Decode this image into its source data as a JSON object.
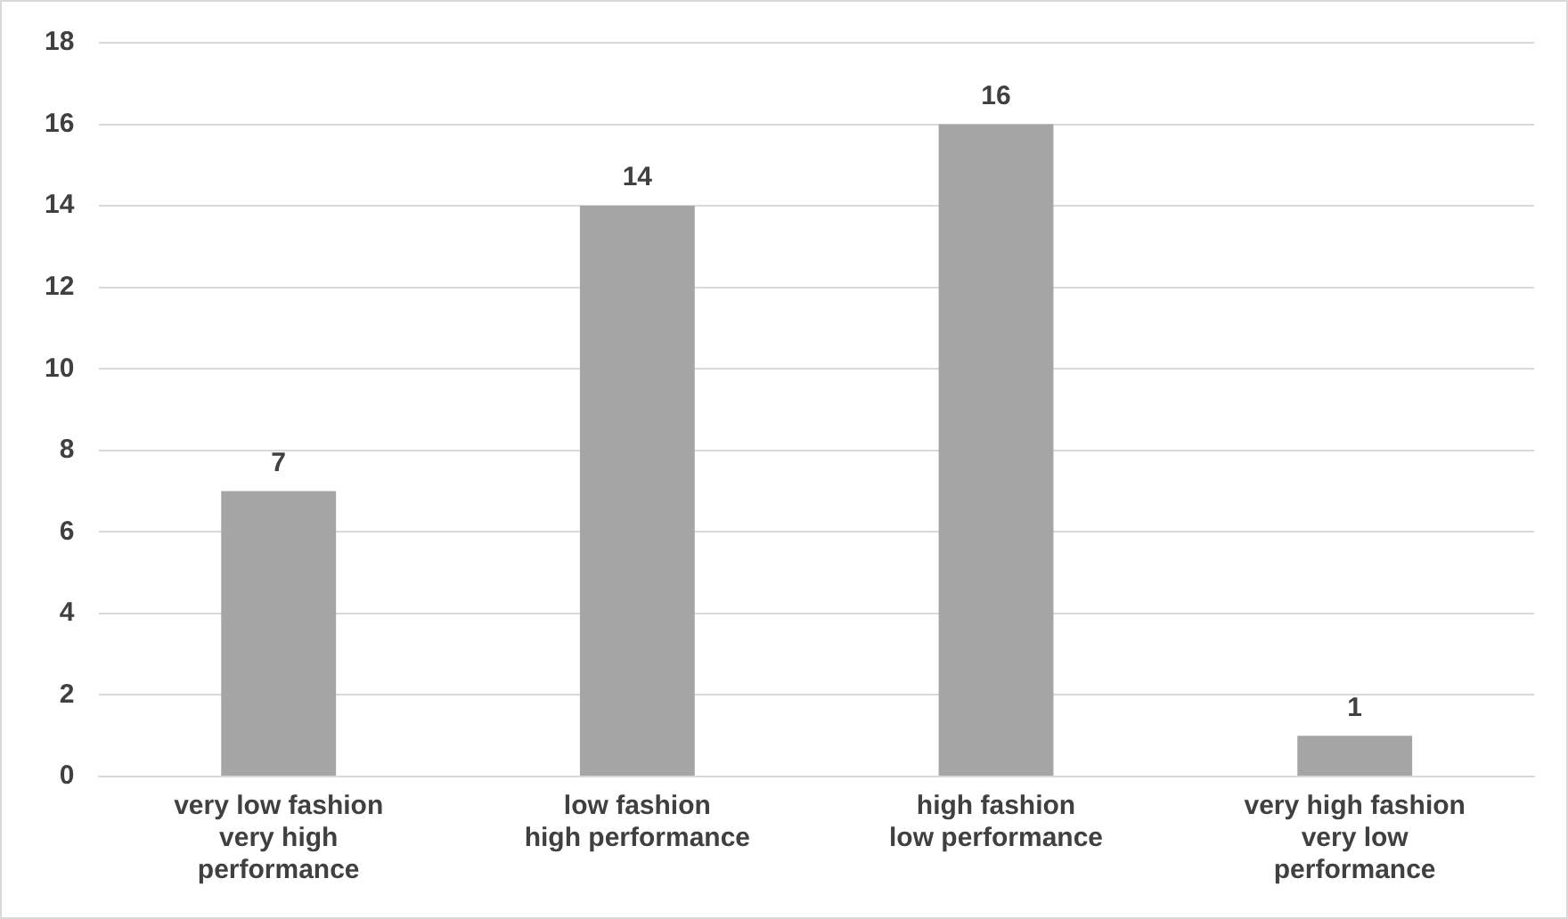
{
  "chart_data": {
    "type": "bar",
    "categories": [
      "very low fashion\nvery high\nperformance",
      "low fashion\nhigh performance",
      "high fashion\nlow performance",
      "very high fashion\nvery low\nperformance"
    ],
    "values": [
      7,
      14,
      16,
      1
    ],
    "color": "#a5a5a5",
    "ylim": [
      0,
      18
    ],
    "yticks": [
      0,
      2,
      4,
      6,
      8,
      10,
      12,
      14,
      16,
      18
    ],
    "grid": "y",
    "data_labels": true,
    "legend": false
  }
}
